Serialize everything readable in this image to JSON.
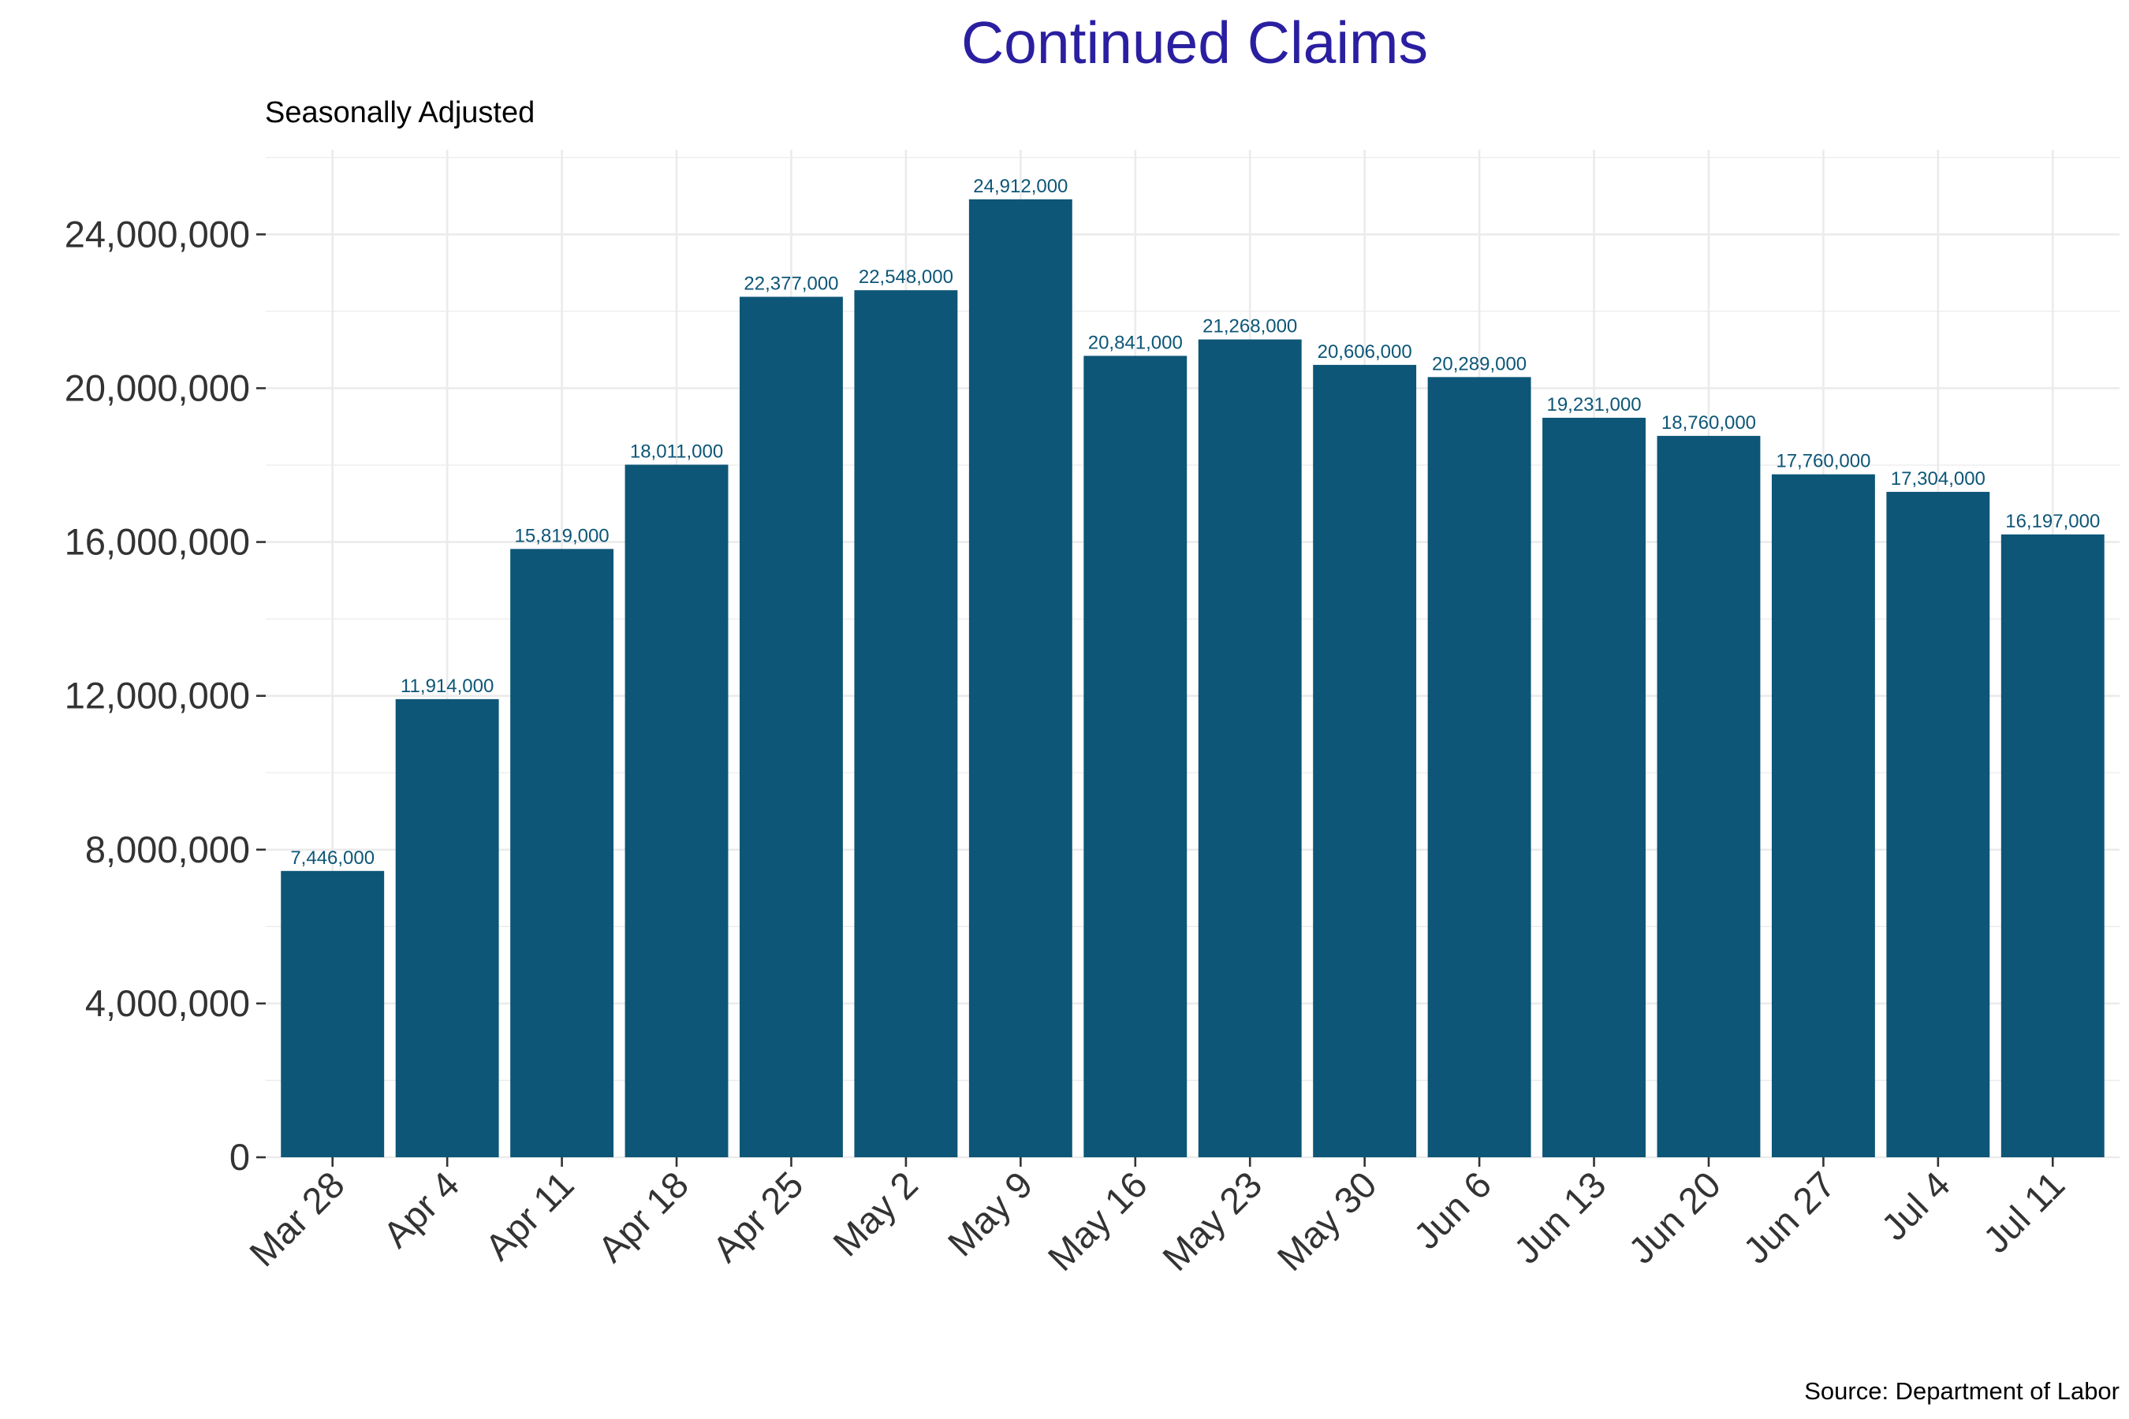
{
  "chart_data": {
    "type": "bar",
    "title": "Continued Claims",
    "subtitle": "Seasonally Adjusted",
    "caption": "Source: Department of Labor",
    "categories": [
      "Mar 28",
      "Apr  4",
      "Apr 11",
      "Apr 18",
      "Apr 25",
      "May  2",
      "May  9",
      "May 16",
      "May 23",
      "May 30",
      "Jun  6",
      "Jun 13",
      "Jun 20",
      "Jun 27",
      "Jul  4",
      "Jul 11"
    ],
    "values": [
      7446000,
      11914000,
      15819000,
      18011000,
      22377000,
      22548000,
      24912000,
      20841000,
      21268000,
      20606000,
      20289000,
      19231000,
      18760000,
      17760000,
      17304000,
      16197000
    ],
    "data_labels": [
      "7,446,000",
      "11,914,000",
      "15,819,000",
      "18,011,000",
      "22,377,000",
      "22,548,000",
      "24,912,000",
      "20,841,000",
      "21,268,000",
      "20,606,000",
      "20,289,000",
      "19,231,000",
      "18,760,000",
      "17,760,000",
      "17,304,000",
      "16,197,000"
    ],
    "y_ticks": [
      0,
      4000000,
      8000000,
      12000000,
      16000000,
      20000000,
      24000000
    ],
    "y_tick_labels": [
      "0",
      "4,000,000",
      "8,000,000",
      "12,000,000",
      "16,000,000",
      "20,000,000",
      "24,000,000"
    ],
    "ylim": [
      0,
      26200000
    ],
    "xlabel": "",
    "ylabel": "",
    "grid": true,
    "legend": "none",
    "colors": {
      "bar": "#0d5677",
      "data_label": "#0d5677",
      "title": "#2a1fa0",
      "grid": "#ebebeb",
      "axis_text": "#333333"
    }
  }
}
